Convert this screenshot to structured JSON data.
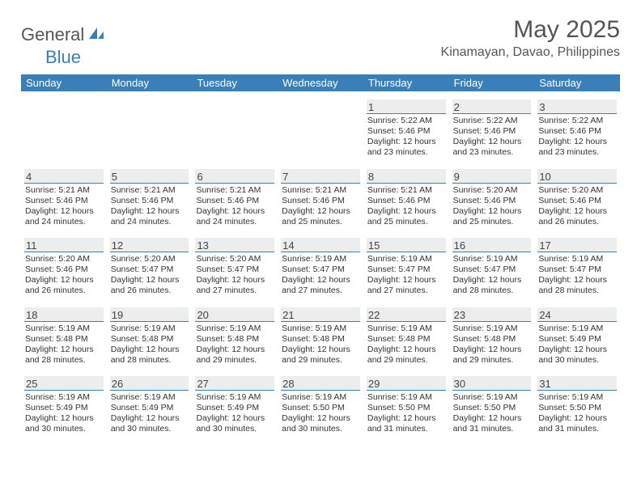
{
  "brand": {
    "general": "General",
    "blue": "Blue"
  },
  "title": "May 2025",
  "location": "Kinamayan, Davao, Philippines",
  "day_labels": [
    "Sunday",
    "Monday",
    "Tuesday",
    "Wednesday",
    "Thursday",
    "Friday",
    "Saturday"
  ],
  "colors": {
    "header_bg": "#3b7fb8",
    "datestrip_bg": "#eceded",
    "datestrip_border": "#3b7fb8",
    "text": "#333333",
    "title_text": "#555555",
    "page_bg": "#ffffff"
  },
  "layout": {
    "columns": 7,
    "rows": 5,
    "first_day_column_index": 4
  },
  "days": [
    {
      "num": 1,
      "sunrise": "5:22 AM",
      "sunset": "5:46 PM",
      "daylight": "12 hours and 23 minutes."
    },
    {
      "num": 2,
      "sunrise": "5:22 AM",
      "sunset": "5:46 PM",
      "daylight": "12 hours and 23 minutes."
    },
    {
      "num": 3,
      "sunrise": "5:22 AM",
      "sunset": "5:46 PM",
      "daylight": "12 hours and 23 minutes."
    },
    {
      "num": 4,
      "sunrise": "5:21 AM",
      "sunset": "5:46 PM",
      "daylight": "12 hours and 24 minutes."
    },
    {
      "num": 5,
      "sunrise": "5:21 AM",
      "sunset": "5:46 PM",
      "daylight": "12 hours and 24 minutes."
    },
    {
      "num": 6,
      "sunrise": "5:21 AM",
      "sunset": "5:46 PM",
      "daylight": "12 hours and 24 minutes."
    },
    {
      "num": 7,
      "sunrise": "5:21 AM",
      "sunset": "5:46 PM",
      "daylight": "12 hours and 25 minutes."
    },
    {
      "num": 8,
      "sunrise": "5:21 AM",
      "sunset": "5:46 PM",
      "daylight": "12 hours and 25 minutes."
    },
    {
      "num": 9,
      "sunrise": "5:20 AM",
      "sunset": "5:46 PM",
      "daylight": "12 hours and 25 minutes."
    },
    {
      "num": 10,
      "sunrise": "5:20 AM",
      "sunset": "5:46 PM",
      "daylight": "12 hours and 26 minutes."
    },
    {
      "num": 11,
      "sunrise": "5:20 AM",
      "sunset": "5:46 PM",
      "daylight": "12 hours and 26 minutes."
    },
    {
      "num": 12,
      "sunrise": "5:20 AM",
      "sunset": "5:47 PM",
      "daylight": "12 hours and 26 minutes."
    },
    {
      "num": 13,
      "sunrise": "5:20 AM",
      "sunset": "5:47 PM",
      "daylight": "12 hours and 27 minutes."
    },
    {
      "num": 14,
      "sunrise": "5:19 AM",
      "sunset": "5:47 PM",
      "daylight": "12 hours and 27 minutes."
    },
    {
      "num": 15,
      "sunrise": "5:19 AM",
      "sunset": "5:47 PM",
      "daylight": "12 hours and 27 minutes."
    },
    {
      "num": 16,
      "sunrise": "5:19 AM",
      "sunset": "5:47 PM",
      "daylight": "12 hours and 28 minutes."
    },
    {
      "num": 17,
      "sunrise": "5:19 AM",
      "sunset": "5:47 PM",
      "daylight": "12 hours and 28 minutes."
    },
    {
      "num": 18,
      "sunrise": "5:19 AM",
      "sunset": "5:48 PM",
      "daylight": "12 hours and 28 minutes."
    },
    {
      "num": 19,
      "sunrise": "5:19 AM",
      "sunset": "5:48 PM",
      "daylight": "12 hours and 28 minutes."
    },
    {
      "num": 20,
      "sunrise": "5:19 AM",
      "sunset": "5:48 PM",
      "daylight": "12 hours and 29 minutes."
    },
    {
      "num": 21,
      "sunrise": "5:19 AM",
      "sunset": "5:48 PM",
      "daylight": "12 hours and 29 minutes."
    },
    {
      "num": 22,
      "sunrise": "5:19 AM",
      "sunset": "5:48 PM",
      "daylight": "12 hours and 29 minutes."
    },
    {
      "num": 23,
      "sunrise": "5:19 AM",
      "sunset": "5:48 PM",
      "daylight": "12 hours and 29 minutes."
    },
    {
      "num": 24,
      "sunrise": "5:19 AM",
      "sunset": "5:49 PM",
      "daylight": "12 hours and 30 minutes."
    },
    {
      "num": 25,
      "sunrise": "5:19 AM",
      "sunset": "5:49 PM",
      "daylight": "12 hours and 30 minutes."
    },
    {
      "num": 26,
      "sunrise": "5:19 AM",
      "sunset": "5:49 PM",
      "daylight": "12 hours and 30 minutes."
    },
    {
      "num": 27,
      "sunrise": "5:19 AM",
      "sunset": "5:49 PM",
      "daylight": "12 hours and 30 minutes."
    },
    {
      "num": 28,
      "sunrise": "5:19 AM",
      "sunset": "5:50 PM",
      "daylight": "12 hours and 30 minutes."
    },
    {
      "num": 29,
      "sunrise": "5:19 AM",
      "sunset": "5:50 PM",
      "daylight": "12 hours and 31 minutes."
    },
    {
      "num": 30,
      "sunrise": "5:19 AM",
      "sunset": "5:50 PM",
      "daylight": "12 hours and 31 minutes."
    },
    {
      "num": 31,
      "sunrise": "5:19 AM",
      "sunset": "5:50 PM",
      "daylight": "12 hours and 31 minutes."
    }
  ],
  "labels": {
    "sunrise_prefix": "Sunrise: ",
    "sunset_prefix": "Sunset: ",
    "daylight_prefix": "Daylight: "
  }
}
